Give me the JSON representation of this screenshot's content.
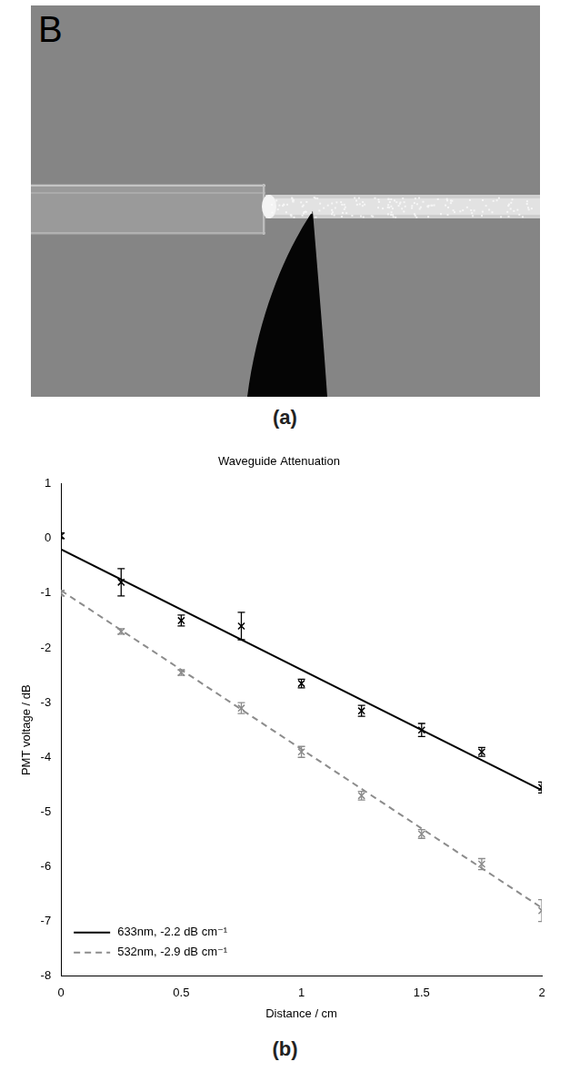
{
  "image_panel": {
    "letter": "B",
    "caption": "(a)"
  },
  "chart_caption": "(b)",
  "chart_data": {
    "type": "scatter",
    "title": "Waveguide Attenuation",
    "x_label": "Distance / cm",
    "y_label": "PMT voltage / dB",
    "xlim": [
      0,
      2
    ],
    "xticks": [
      0,
      0.5,
      1,
      1.5,
      2
    ],
    "ylim": [
      -8,
      1
    ],
    "yticks": [
      -8,
      -7,
      -6,
      -5,
      -4,
      -3,
      -2,
      -1,
      0,
      1
    ],
    "grid": false,
    "legend": "lower left",
    "series": [
      {
        "name": "633nm, -2.2 dB cm⁻¹",
        "color": "#000000",
        "marker": "x",
        "line_style": "solid",
        "x": [
          0,
          0.25,
          0.5,
          0.75,
          1,
          1.25,
          1.5,
          1.75,
          2
        ],
        "values": [
          0.05,
          -0.8,
          -1.5,
          -1.6,
          -2.65,
          -3.15,
          -3.5,
          -3.9,
          -4.55
        ],
        "errors": [
          0.05,
          0.25,
          0.1,
          0.25,
          0.08,
          0.1,
          0.12,
          0.08,
          0.1
        ],
        "fit_x": [
          0,
          2
        ],
        "fit_values": [
          -0.2,
          -4.6
        ]
      },
      {
        "name": "532nm, -2.9 dB cm⁻¹",
        "color": "#8c8c8c",
        "marker": "x",
        "line_style": "dashed",
        "x": [
          0,
          0.25,
          0.5,
          0.75,
          1,
          1.25,
          1.5,
          1.75,
          2
        ],
        "values": [
          -1.0,
          -1.7,
          -2.45,
          -3.1,
          -3.9,
          -4.7,
          -5.4,
          -5.95,
          -6.8
        ],
        "errors": [
          0.05,
          0.05,
          0.05,
          0.1,
          0.1,
          0.08,
          0.08,
          0.1,
          0.2
        ],
        "fit_x": [
          0,
          2
        ],
        "fit_values": [
          -0.95,
          -6.75
        ]
      }
    ]
  }
}
